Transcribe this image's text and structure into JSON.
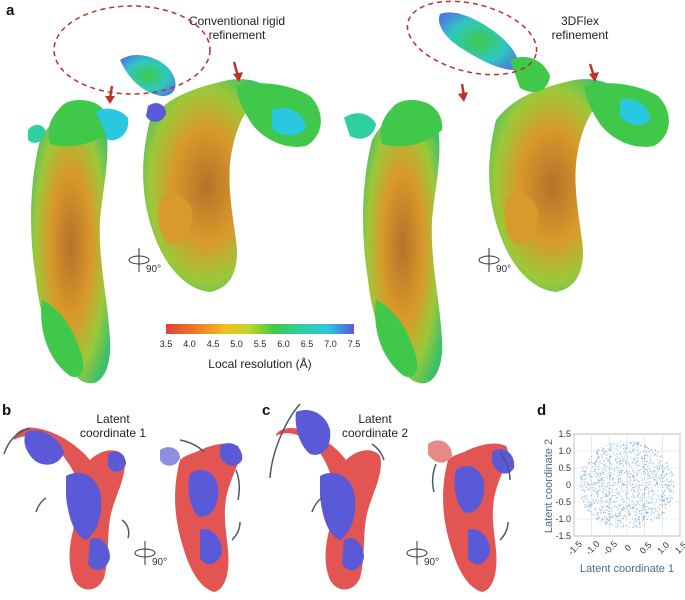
{
  "panels": {
    "a": {
      "letter": "a"
    },
    "b": {
      "letter": "b"
    },
    "c": {
      "letter": "c"
    },
    "d": {
      "letter": "d"
    }
  },
  "captions": {
    "conventional_line1": "Conventional rigid",
    "conventional_line2": "refinement",
    "flex_line1": "3DFlex",
    "flex_line2": "refinement",
    "latent1_line1": "Latent",
    "latent1_line2": "coordinate 1",
    "latent2_line1": "Latent",
    "latent2_line2": "coordinate 2"
  },
  "rotation_label": "90°",
  "colorbar": {
    "title": "Local resolution (Å)",
    "ticks": [
      "3.5",
      "4.0",
      "4.5",
      "5.0",
      "5.5",
      "6.0",
      "6.5",
      "7.0",
      "7.5"
    ],
    "colors": [
      "#e0403a",
      "#f07a2a",
      "#f2c21e",
      "#b9d62a",
      "#3fc84a",
      "#2fd0a0",
      "#2ac8e0",
      "#3a8ee8",
      "#5a5ad8"
    ]
  },
  "colors": {
    "state_red": "#e25552",
    "state_blue": "#5a5ad8",
    "ellipse": "#c0302a",
    "arrow_red": "#c0302a",
    "scatter": "#4a90c8"
  },
  "chart_data": {
    "type": "scatter",
    "xlabel": "Latent coordinate 1",
    "ylabel": "Latent coordinate 2",
    "xlim": [
      -1.5,
      1.5
    ],
    "ylim": [
      -1.5,
      1.5
    ],
    "xticks": [
      "-1.5",
      "-1.0",
      "-0.5",
      "0",
      "0.5",
      "1.0",
      "1.5"
    ],
    "yticks": [
      "1.5",
      "1.0",
      "0.5",
      "0",
      "-0.5",
      "-1.0",
      "-1.5"
    ],
    "grid": true,
    "distribution": "dense roughly uniform disk of points, radius about 1.3, centered at (0, 0)"
  }
}
